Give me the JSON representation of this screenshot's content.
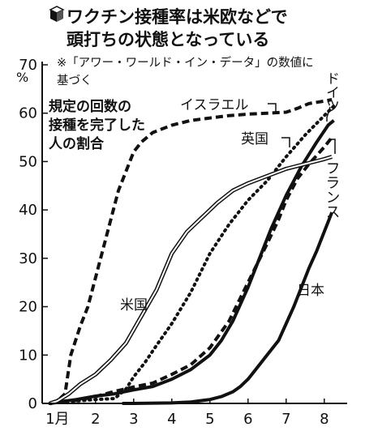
{
  "chart_data": {
    "type": "line",
    "title_lines": [
      "ワクチン接種率は米欧などで",
      "頭打ちの状態となっている"
    ],
    "note_lines": [
      "※「アワー・ワールド・イン・データ」の数値に",
      "基づく"
    ],
    "description_lines": [
      "規定の回数の",
      "接種を完了した",
      "人の割合"
    ],
    "y_unit": "%",
    "y_ticks": [
      0,
      10,
      20,
      30,
      40,
      50,
      60,
      70
    ],
    "y_tick_labels": [
      "0",
      "10",
      "20",
      "30",
      "40",
      "50",
      "60",
      "70"
    ],
    "ylim": [
      0,
      70
    ],
    "x_ticks": [
      1,
      2,
      3,
      4,
      5,
      6,
      7,
      8
    ],
    "x_tick_labels": [
      "1月",
      "2",
      "3",
      "4",
      "5",
      "6",
      "7",
      "8"
    ],
    "xlim": [
      0.6,
      8.6
    ],
    "series": [
      {
        "name": "イスラエル",
        "style": "dashed",
        "x": [
          0.8,
          1.0,
          1.2,
          1.35,
          1.6,
          1.8,
          2.0,
          2.2,
          2.4,
          2.6,
          2.8,
          3.0,
          3.2,
          3.5,
          4.0,
          4.5,
          5.0,
          5.5,
          6.0,
          6.5,
          7.0,
          7.3,
          7.6,
          8.0,
          8.2
        ],
        "y": [
          0,
          0.5,
          2,
          10,
          16,
          20,
          26,
          32,
          38,
          44,
          48,
          52,
          54,
          56,
          57.5,
          58.5,
          59,
          59.5,
          59.8,
          60,
          60.2,
          61,
          62,
          62.5,
          62.8
        ]
      },
      {
        "name": "ドイツ",
        "style": "solid-thick",
        "x": [
          0.8,
          1.0,
          1.5,
          2.0,
          2.5,
          3.0,
          3.5,
          4.0,
          4.5,
          5.0,
          5.3,
          5.6,
          6.0,
          6.3,
          6.6,
          7.0,
          7.4,
          7.8,
          8.1,
          8.25
        ],
        "y": [
          0,
          0.3,
          0.8,
          1.5,
          2,
          2.8,
          3.5,
          5,
          7,
          10,
          13,
          17,
          24,
          30,
          36,
          43,
          49,
          54,
          57.5,
          58.5
        ]
      },
      {
        "name": "英国",
        "style": "dotted",
        "x": [
          0.8,
          1.0,
          1.5,
          2.0,
          2.5,
          2.8,
          3.0,
          3.3,
          3.6,
          4.0,
          4.5,
          5.0,
          5.5,
          6.0,
          6.5,
          7.0,
          7.5,
          8.0,
          8.25
        ],
        "y": [
          0,
          0.3,
          0.5,
          0.8,
          1,
          3,
          5.5,
          8.5,
          12,
          16.5,
          23,
          31,
          37,
          42,
          46,
          51,
          55.5,
          59.5,
          61.5
        ]
      },
      {
        "name": "フランス",
        "style": "dashed",
        "x": [
          0.8,
          1.0,
          1.5,
          2.0,
          2.5,
          3.0,
          3.5,
          4.0,
          4.5,
          5.0,
          5.5,
          6.0,
          6.5,
          6.8,
          7.0,
          7.3,
          7.6,
          8.0,
          8.2
        ],
        "y": [
          0,
          0.2,
          0.6,
          1.4,
          2.5,
          3.4,
          4.2,
          6,
          8,
          11.5,
          17,
          25,
          33,
          38,
          42,
          46.5,
          49.5,
          53,
          55
        ]
      },
      {
        "name": "米国",
        "style": "double",
        "x": [
          0.8,
          1.0,
          1.3,
          1.6,
          2.0,
          2.4,
          2.8,
          3.2,
          3.6,
          4.0,
          4.4,
          4.8,
          5.2,
          5.6,
          6.0,
          6.5,
          7.0,
          7.5,
          8.0,
          8.2
        ],
        "y": [
          0,
          0.5,
          2,
          4,
          6,
          9,
          12.5,
          18,
          23.5,
          31,
          35.5,
          38.5,
          41.5,
          44,
          45.5,
          47,
          48.5,
          49.5,
          50.5,
          51
        ]
      },
      {
        "name": "日本",
        "style": "solid-thick",
        "x": [
          2.7,
          3.0,
          4.0,
          4.5,
          5.0,
          5.3,
          5.6,
          5.8,
          6.0,
          6.2,
          6.5,
          6.8,
          7.0,
          7.2,
          7.4,
          7.6,
          7.8,
          8.0,
          8.2
        ],
        "y": [
          0,
          0,
          0.1,
          0.3,
          0.8,
          1.4,
          2.4,
          3.5,
          5,
          7,
          10,
          13,
          16.5,
          20,
          24,
          28,
          31.5,
          35.5,
          39.5
        ]
      }
    ]
  }
}
